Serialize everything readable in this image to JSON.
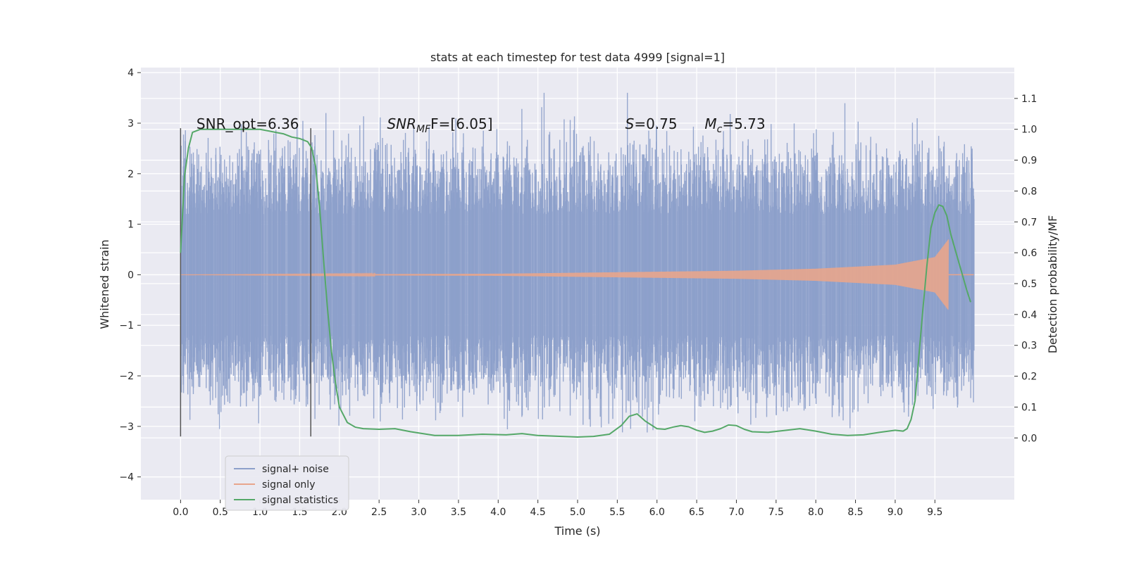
{
  "chart_data": {
    "type": "line",
    "title": "stats at each timestep for test data 4999 [signal=1]",
    "xlabel": "Time (s)",
    "ylabel": "Whitened strain",
    "ylabel_right": "Detection probability/MF",
    "xlim": [
      -0.5,
      10.5
    ],
    "ylim": [
      -4.45,
      4.1
    ],
    "ylim_right": [
      -0.2,
      1.2
    ],
    "xticks": [
      0.0,
      0.5,
      1.0,
      1.5,
      2.0,
      2.5,
      3.0,
      3.5,
      4.0,
      4.5,
      5.0,
      5.5,
      6.0,
      6.5,
      7.0,
      7.5,
      8.0,
      8.5,
      9.0,
      9.5
    ],
    "xtick_labels": [
      "0.0",
      "0.5",
      "1.0",
      "1.5",
      "2.0",
      "2.5",
      "3.0",
      "3.5",
      "4.0",
      "4.5",
      "5.0",
      "5.5",
      "6.0",
      "6.5",
      "7.0",
      "7.5",
      "8.0",
      "8.5",
      "9.0",
      "9.5"
    ],
    "yticks": [
      -4,
      -3,
      -2,
      -1,
      0,
      1,
      2,
      3,
      4
    ],
    "ytick_labels": [
      "−4",
      "−3",
      "−2",
      "−1",
      "0",
      "1",
      "2",
      "3",
      "4"
    ],
    "yticks_right": [
      0.0,
      0.1,
      0.2,
      0.3,
      0.4,
      0.5,
      0.6,
      0.7,
      0.8,
      0.9,
      1.0,
      1.1
    ],
    "ytick_labels_right": [
      "0.0",
      "0.1",
      "0.2",
      "0.3",
      "0.4",
      "0.5",
      "0.6",
      "0.7",
      "0.8",
      "0.9",
      "1.0",
      "1.1"
    ],
    "grid": true,
    "legend_position": "bottom-left",
    "vertical_markers": [
      {
        "x": 0.0,
        "y_range": [
          -3.2,
          2.9
        ]
      },
      {
        "x": 1.64,
        "y_range": [
          -3.2,
          2.9
        ]
      }
    ],
    "annotations": [
      {
        "text": "SNR_opt=6.36",
        "x": 0.2,
        "y": 3.0
      },
      {
        "text_base": "SNR",
        "text_sub": "MF",
        "text_rest": "F=[6.05]",
        "x": 2.6,
        "y": 3.0
      },
      {
        "text_base": "S",
        "text_rest": "=0.75",
        "x": 5.6,
        "y": 3.0
      },
      {
        "text_base": "M",
        "text_sub": "c",
        "text_rest": "=5.73",
        "x": 6.6,
        "y": 3.0
      }
    ],
    "series": [
      {
        "name": "signal+ noise",
        "color": "#8da0cb",
        "kind": "noise_band",
        "x_range": [
          0.0,
          9.99
        ],
        "core_amplitude": 1.6,
        "spike_max": 3.6
      },
      {
        "name": "signal only",
        "color": "#e8a58c",
        "kind": "chirp",
        "x_range": [
          0.0,
          9.67
        ],
        "envelope": [
          [
            0.0,
            0.0
          ],
          [
            4.0,
            0.02
          ],
          [
            5.0,
            0.04
          ],
          [
            6.0,
            0.06
          ],
          [
            7.0,
            0.08
          ],
          [
            8.0,
            0.12
          ],
          [
            9.0,
            0.2
          ],
          [
            9.5,
            0.35
          ],
          [
            9.67,
            0.7
          ]
        ]
      },
      {
        "name": "signal statistics",
        "color": "#55a868",
        "kind": "line",
        "axis": "right",
        "x": [
          0.0,
          0.05,
          0.1,
          0.15,
          0.25,
          0.4,
          0.6,
          0.8,
          1.0,
          1.1,
          1.2,
          1.3,
          1.4,
          1.5,
          1.55,
          1.6,
          1.65,
          1.7,
          1.75,
          1.8,
          1.85,
          1.9,
          1.95,
          2.0,
          2.1,
          2.2,
          2.3,
          2.5,
          2.7,
          2.9,
          3.2,
          3.5,
          3.8,
          4.1,
          4.3,
          4.5,
          4.8,
          5.0,
          5.2,
          5.4,
          5.55,
          5.65,
          5.75,
          5.85,
          6.0,
          6.1,
          6.2,
          6.3,
          6.4,
          6.5,
          6.6,
          6.7,
          6.8,
          6.9,
          7.0,
          7.1,
          7.2,
          7.4,
          7.6,
          7.8,
          8.0,
          8.2,
          8.4,
          8.6,
          8.8,
          9.0,
          9.1,
          9.15,
          9.2,
          9.25,
          9.3,
          9.35,
          9.4,
          9.45,
          9.5,
          9.55,
          9.6,
          9.65,
          9.7,
          9.8,
          9.9,
          9.95
        ],
        "y": [
          0.6,
          0.85,
          0.94,
          0.99,
          1.0,
          1.0,
          1.0,
          1.0,
          1.0,
          0.995,
          0.99,
          0.985,
          0.975,
          0.97,
          0.965,
          0.96,
          0.94,
          0.88,
          0.75,
          0.58,
          0.42,
          0.28,
          0.18,
          0.1,
          0.05,
          0.035,
          0.03,
          0.028,
          0.03,
          0.02,
          0.008,
          0.008,
          0.012,
          0.01,
          0.014,
          0.008,
          0.005,
          0.003,
          0.005,
          0.012,
          0.04,
          0.07,
          0.078,
          0.055,
          0.03,
          0.028,
          0.035,
          0.04,
          0.036,
          0.025,
          0.018,
          0.022,
          0.03,
          0.042,
          0.04,
          0.028,
          0.02,
          0.018,
          0.024,
          0.03,
          0.022,
          0.012,
          0.008,
          0.01,
          0.018,
          0.025,
          0.022,
          0.03,
          0.06,
          0.12,
          0.27,
          0.42,
          0.56,
          0.68,
          0.73,
          0.755,
          0.75,
          0.72,
          0.66,
          0.57,
          0.48,
          0.44
        ]
      }
    ]
  }
}
